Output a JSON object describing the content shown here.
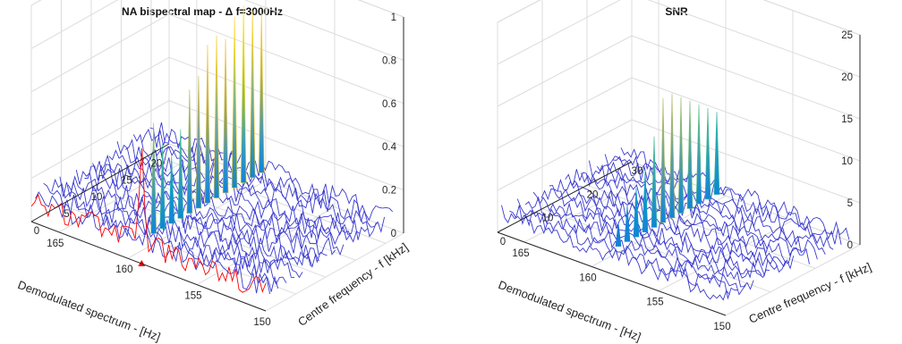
{
  "chart_data": [
    {
      "type": "waterfall-3d",
      "title": "NA bispectral map - Δ f=3000Hz",
      "xlabel": "Demodulated spectrum - [Hz]",
      "ylabel": "Centre frequency - f [kHz]",
      "zlabel": "",
      "xlim": [
        150,
        167
      ],
      "ylim": [
        0,
        23
      ],
      "zlim": [
        0,
        1
      ],
      "xticks": [
        "150",
        "155",
        "160",
        "165"
      ],
      "yticks": [
        "0",
        "5",
        "10",
        "15",
        "20"
      ],
      "zticks": [
        "0",
        "0.2",
        "0.4",
        "0.6",
        "0.8",
        "1"
      ],
      "grid": true,
      "colormap": "parula",
      "peak_x": 159,
      "background_level": 0.12,
      "highlighted_slice": {
        "y": 0,
        "color": "#ff0000",
        "peak_value": 0.55,
        "marker": "triangle",
        "marker_x": 159
      },
      "peaks": [
        {
          "y": 2,
          "value": 0.62
        },
        {
          "y": 3.5,
          "value": 0.5
        },
        {
          "y": 5,
          "value": 0.42
        },
        {
          "y": 6.5,
          "value": 0.52
        },
        {
          "y": 8,
          "value": 0.68
        },
        {
          "y": 9.5,
          "value": 0.72
        },
        {
          "y": 11,
          "value": 0.84
        },
        {
          "y": 12.5,
          "value": 0.86
        },
        {
          "y": 14,
          "value": 0.82
        },
        {
          "y": 15.5,
          "value": 0.9
        },
        {
          "y": 17,
          "value": 0.93
        },
        {
          "y": 18.5,
          "value": 0.88
        },
        {
          "y": 20,
          "value": 0.86
        }
      ]
    },
    {
      "type": "waterfall-3d",
      "title": "SNR",
      "xlabel": "Demodulated spectrum - [Hz]",
      "ylabel": "Centre frequency - f [kHz]",
      "zlabel": "",
      "xlim": [
        150,
        167
      ],
      "ylim": [
        0,
        30
      ],
      "zlim": [
        0,
        25
      ],
      "xticks": [
        "150",
        "155",
        "160",
        "165"
      ],
      "yticks": [
        "0",
        "10",
        "20",
        "30"
      ],
      "zticks": [
        "0",
        "5",
        "10",
        "15",
        "20",
        "25"
      ],
      "grid": true,
      "colormap": "parula",
      "peak_x": 159,
      "background_level": 2.4,
      "highlighted_slice": null,
      "peaks": [
        {
          "y": 3,
          "value": 5
        },
        {
          "y": 5,
          "value": 6.5
        },
        {
          "y": 7,
          "value": 8
        },
        {
          "y": 9,
          "value": 9.5
        },
        {
          "y": 11,
          "value": 13
        },
        {
          "y": 13,
          "value": 17
        },
        {
          "y": 15,
          "value": 17
        },
        {
          "y": 17,
          "value": 16
        },
        {
          "y": 19,
          "value": 15
        },
        {
          "y": 21,
          "value": 14
        },
        {
          "y": 23,
          "value": 13
        },
        {
          "y": 25,
          "value": 12
        }
      ]
    }
  ]
}
